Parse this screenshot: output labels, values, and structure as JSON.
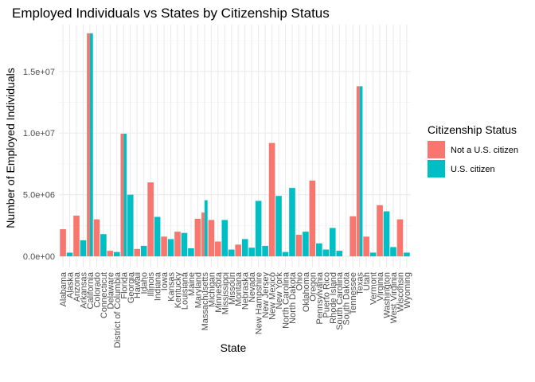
{
  "chart_data": {
    "type": "bar",
    "title": "Employed Individuals vs States by Citizenship Status",
    "xlabel": "State",
    "ylabel": "Number of Employed Individuals",
    "ylim": [
      -900000,
      18800000
    ],
    "yticks": [
      0,
      5000000,
      10000000,
      15000000
    ],
    "ytick_labels": [
      "0.0e+00",
      "5.0e+06",
      "1.0e+07",
      "1.5e+07"
    ],
    "grid": true,
    "legend": {
      "title": "Citizenship Status",
      "position": "right"
    },
    "categories": [
      "Alabama",
      "Alaska",
      "Arizona",
      "Arkansas",
      "California",
      "Colorado",
      "Connecticut",
      "Delaware",
      "District of Columbia",
      "Florida",
      "Georgia",
      "Hawaii",
      "Idaho",
      "Illinois",
      "Indiana",
      "Iowa",
      "Kansas",
      "Kentucky",
      "Louisiana",
      "Maine",
      "Maryland",
      "Massachusetts",
      "Michigan",
      "Minnesota",
      "Mississippi",
      "Missouri",
      "Montana",
      "Nebraska",
      "Nevada",
      "New Hampshire",
      "New Jersey",
      "New Mexico",
      "New York",
      "North Carolina",
      "North Dakota",
      "Ohio",
      "Oklahoma",
      "Oregon",
      "Pennsylvania",
      "Puerto Rico",
      "Rhode Island",
      "South Carolina",
      "South Dakota",
      "Tennessee",
      "Texas",
      "Utah",
      "Vermont",
      "Virginia",
      "Washington",
      "West Virginia",
      "Wisconsin",
      "Wyoming"
    ],
    "bars": [
      {
        "category": "Alabama",
        "series": "Not a U.S. citizen",
        "value": 2200000
      },
      {
        "category": "Alaska",
        "series": "U.S. citizen",
        "value": 300000
      },
      {
        "category": "Arizona",
        "series": "Not a U.S. citizen",
        "value": 3300000
      },
      {
        "category": "Arkansas",
        "series": "U.S. citizen",
        "value": 1300000
      },
      {
        "category": "California",
        "series": "Not a U.S. citizen",
        "value": 18100000
      },
      {
        "category": "California",
        "series": "U.S. citizen",
        "value": 18100000
      },
      {
        "category": "Colorado",
        "series": "Not a U.S. citizen",
        "value": 3000000
      },
      {
        "category": "Connecticut",
        "series": "U.S. citizen",
        "value": 1800000
      },
      {
        "category": "Delaware",
        "series": "Not a U.S. citizen",
        "value": 450000
      },
      {
        "category": "District of Columbia",
        "series": "U.S. citizen",
        "value": 350000
      },
      {
        "category": "Florida",
        "series": "Not a U.S. citizen",
        "value": 9950000
      },
      {
        "category": "Florida",
        "series": "U.S. citizen",
        "value": 9950000
      },
      {
        "category": "Georgia",
        "series": "U.S. citizen",
        "value": 5000000
      },
      {
        "category": "Hawaii",
        "series": "Not a U.S. citizen",
        "value": 600000
      },
      {
        "category": "Idaho",
        "series": "U.S. citizen",
        "value": 850000
      },
      {
        "category": "Illinois",
        "series": "Not a U.S. citizen",
        "value": 6000000
      },
      {
        "category": "Indiana",
        "series": "U.S. citizen",
        "value": 3200000
      },
      {
        "category": "Iowa",
        "series": "Not a U.S. citizen",
        "value": 1600000
      },
      {
        "category": "Kansas",
        "series": "U.S. citizen",
        "value": 1400000
      },
      {
        "category": "Kentucky",
        "series": "Not a U.S. citizen",
        "value": 2000000
      },
      {
        "category": "Louisiana",
        "series": "U.S. citizen",
        "value": 1900000
      },
      {
        "category": "Maine",
        "series": "U.S. citizen",
        "value": 650000
      },
      {
        "category": "Maryland",
        "series": "Not a U.S. citizen",
        "value": 3050000
      },
      {
        "category": "Massachusetts",
        "series": "Not a U.S. citizen",
        "value": 3550000
      },
      {
        "category": "Massachusetts",
        "series": "U.S. citizen",
        "value": 4550000
      },
      {
        "category": "Michigan",
        "series": "Not a U.S. citizen",
        "value": 2950000
      },
      {
        "category": "Minnesota",
        "series": "Not a U.S. citizen",
        "value": 1200000
      },
      {
        "category": "Mississippi",
        "series": "U.S. citizen",
        "value": 2950000
      },
      {
        "category": "Missouri",
        "series": "U.S. citizen",
        "value": 550000
      },
      {
        "category": "Montana",
        "series": "Not a U.S. citizen",
        "value": 950000
      },
      {
        "category": "Nebraska",
        "series": "U.S. citizen",
        "value": 1400000
      },
      {
        "category": "Nevada",
        "series": "U.S. citizen",
        "value": 700000
      },
      {
        "category": "New Hampshire",
        "series": "U.S. citizen",
        "value": 4500000
      },
      {
        "category": "New Jersey",
        "series": "U.S. citizen",
        "value": 850000
      },
      {
        "category": "New Mexico",
        "series": "Not a U.S. citizen",
        "value": 9200000
      },
      {
        "category": "New York",
        "series": "U.S. citizen",
        "value": 4900000
      },
      {
        "category": "North Carolina",
        "series": "U.S. citizen",
        "value": 350000
      },
      {
        "category": "North Dakota",
        "series": "U.S. citizen",
        "value": 5550000
      },
      {
        "category": "Ohio",
        "series": "Not a U.S. citizen",
        "value": 1750000
      },
      {
        "category": "Oklahoma",
        "series": "U.S. citizen",
        "value": 2000000
      },
      {
        "category": "Oregon",
        "series": "Not a U.S. citizen",
        "value": 6150000
      },
      {
        "category": "Pennsylvania",
        "series": "U.S. citizen",
        "value": 1050000
      },
      {
        "category": "Puerto Rico",
        "series": "U.S. citizen",
        "value": 550000
      },
      {
        "category": "Rhode Island",
        "series": "U.S. citizen",
        "value": 2300000
      },
      {
        "category": "South Carolina",
        "series": "U.S. citizen",
        "value": 450000
      },
      {
        "category": "Tennessee",
        "series": "Not a U.S. citizen",
        "value": 3250000
      },
      {
        "category": "Texas",
        "series": "Not a U.S. citizen",
        "value": 13800000
      },
      {
        "category": "Texas",
        "series": "U.S. citizen",
        "value": 13800000
      },
      {
        "category": "Utah",
        "series": "Not a U.S. citizen",
        "value": 1600000
      },
      {
        "category": "Vermont",
        "series": "U.S. citizen",
        "value": 300000
      },
      {
        "category": "Virginia",
        "series": "Not a U.S. citizen",
        "value": 4150000
      },
      {
        "category": "Washington",
        "series": "U.S. citizen",
        "value": 3650000
      },
      {
        "category": "West Virginia",
        "series": "U.S. citizen",
        "value": 750000
      },
      {
        "category": "Wisconsin",
        "series": "Not a U.S. citizen",
        "value": 3000000
      },
      {
        "category": "Wyoming",
        "series": "U.S. citizen",
        "value": 300000
      }
    ],
    "series": [
      {
        "name": "Not a U.S. citizen",
        "color": "#F8766D"
      },
      {
        "name": "U.S. citizen",
        "color": "#00BFC4"
      }
    ]
  }
}
